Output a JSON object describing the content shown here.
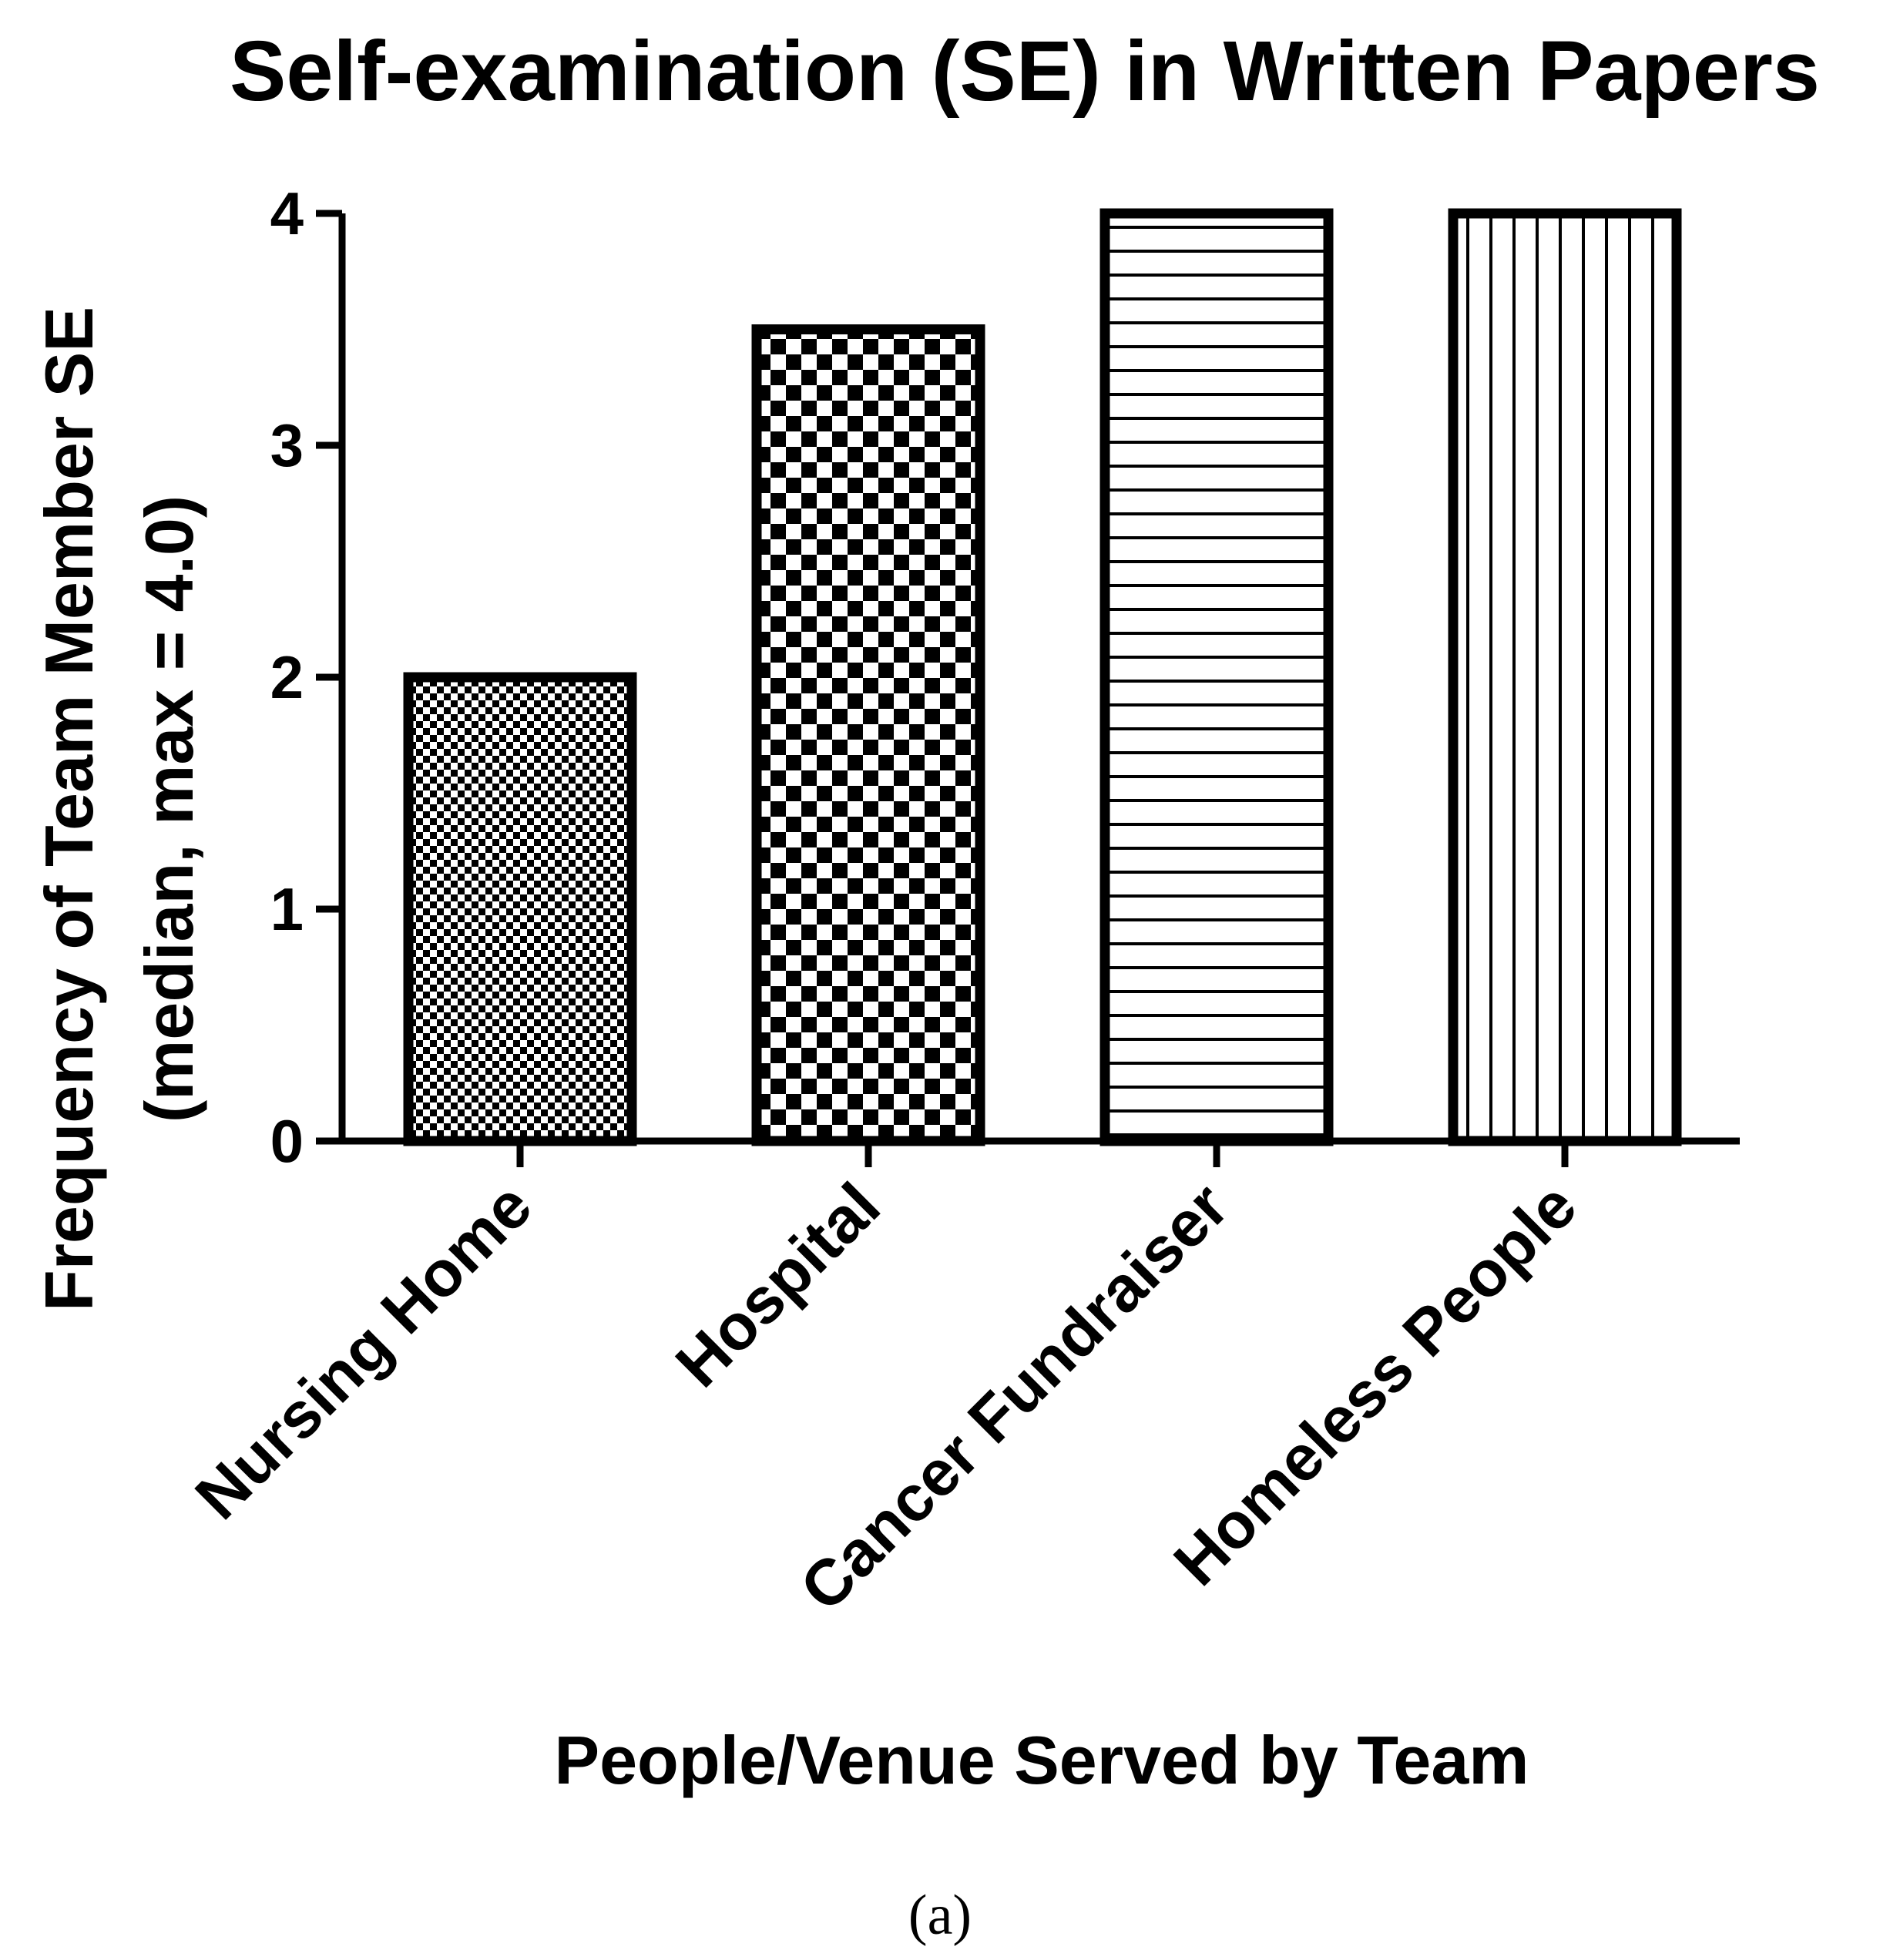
{
  "chart_data": {
    "type": "bar",
    "title": "Self-examination (SE) in Written Papers",
    "ylabel_line1": "Frequency of Team Member SE",
    "ylabel_line2": "(median, max = 4.0)",
    "xlabel": "People/Venue Served by Team",
    "categories": [
      "Nursing Home",
      "Hospital",
      "Cancer Fundraiser",
      "Homeless People"
    ],
    "values": [
      2.0,
      3.5,
      4.0,
      4.0
    ],
    "patterns": [
      "fine-checker",
      "coarse-checker",
      "horizontal-lines",
      "vertical-lines"
    ],
    "ylim": [
      0,
      4
    ],
    "yticks": [
      "0",
      "1",
      "2",
      "3",
      "4"
    ],
    "grid": false,
    "legend": "none",
    "colors": {
      "bar_outline": "#000000",
      "fill_background": "#ffffff",
      "pattern": "#000000"
    }
  },
  "caption": "(a)"
}
